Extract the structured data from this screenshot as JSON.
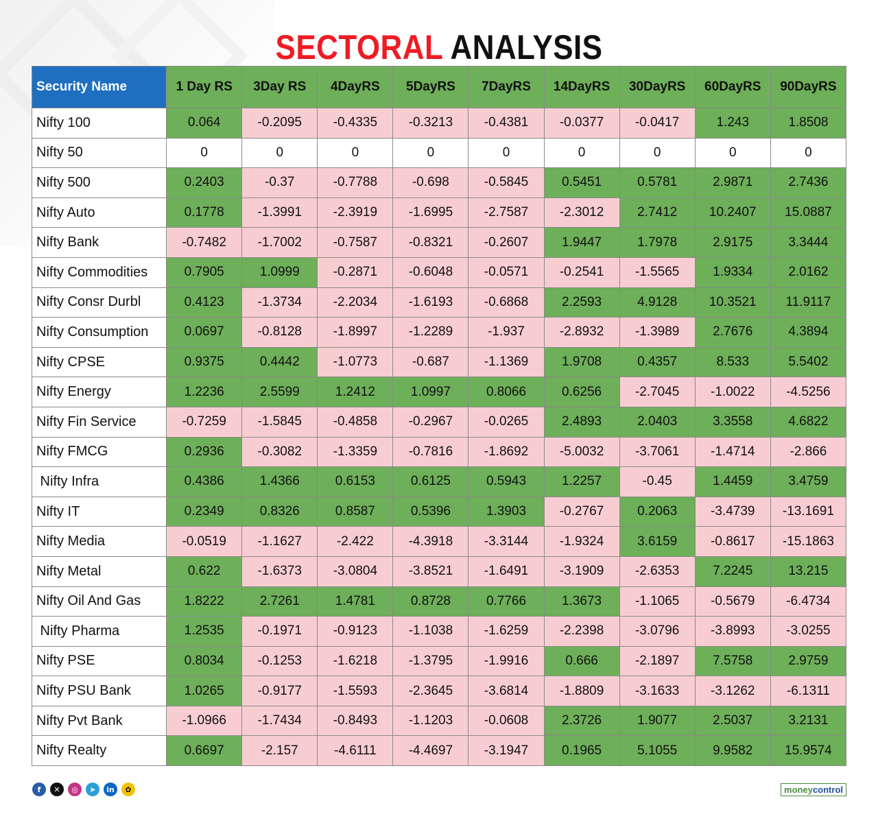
{
  "title": {
    "part1": "SECTORAL",
    "part2": "ANALYSIS"
  },
  "chart_data": {
    "type": "table",
    "title": "SECTORAL ANALYSIS",
    "columns": [
      "Security Name",
      "1 Day RS",
      "3Day RS",
      "4DayRS",
      "5DayRS",
      "7DayRS",
      "14DayRS",
      "30DayRS",
      "60DayRS",
      "90DayRS"
    ],
    "rows": [
      {
        "name": "Nifty 100",
        "values": [
          "0.064",
          "-0.2095",
          "-0.4335",
          "-0.3213",
          "-0.4381",
          "-0.0377",
          "-0.0417",
          "1.243",
          "1.8508"
        ]
      },
      {
        "name": "Nifty 50",
        "values": [
          "0",
          "0",
          "0",
          "0",
          "0",
          "0",
          "0",
          "0",
          "0"
        ]
      },
      {
        "name": "Nifty 500",
        "values": [
          "0.2403",
          "-0.37",
          "-0.7788",
          "-0.698",
          "-0.5845",
          "0.5451",
          "0.5781",
          "2.9871",
          "2.7436"
        ]
      },
      {
        "name": "Nifty Auto",
        "values": [
          "0.1778",
          "-1.3991",
          "-2.3919",
          "-1.6995",
          "-2.7587",
          "-2.3012",
          "2.7412",
          "10.2407",
          "15.0887"
        ]
      },
      {
        "name": "Nifty Bank",
        "values": [
          "-0.7482",
          "-1.7002",
          "-0.7587",
          "-0.8321",
          "-0.2607",
          "1.9447",
          "1.7978",
          "2.9175",
          "3.3444"
        ]
      },
      {
        "name": "Nifty Commodities",
        "values": [
          "0.7905",
          "1.0999",
          "-0.2871",
          "-0.6048",
          "-0.0571",
          "-0.2541",
          "-1.5565",
          "1.9334",
          "2.0162"
        ]
      },
      {
        "name": "Nifty Consr Durbl",
        "values": [
          "0.4123",
          "-1.3734",
          "-2.2034",
          "-1.6193",
          "-0.6868",
          "2.2593",
          "4.9128",
          "10.3521",
          "11.9117"
        ]
      },
      {
        "name": "Nifty Consumption",
        "values": [
          "0.0697",
          "-0.8128",
          "-1.8997",
          "-1.2289",
          "-1.937",
          "-2.8932",
          "-1.3989",
          "2.7676",
          "4.3894"
        ]
      },
      {
        "name": "Nifty CPSE",
        "values": [
          "0.9375",
          "0.4442",
          "-1.0773",
          "-0.687",
          "-1.1369",
          "1.9708",
          "0.4357",
          "8.533",
          "5.5402"
        ]
      },
      {
        "name": "Nifty Energy",
        "values": [
          "1.2236",
          "2.5599",
          "1.2412",
          "1.0997",
          "0.8066",
          "0.6256",
          "-2.7045",
          "-1.0022",
          "-4.5256"
        ]
      },
      {
        "name": "Nifty Fin Service",
        "values": [
          "-0.7259",
          "-1.5845",
          "-0.4858",
          "-0.2967",
          "-0.0265",
          "2.4893",
          "2.0403",
          "3.3558",
          "4.6822"
        ]
      },
      {
        "name": "Nifty FMCG",
        "values": [
          "0.2936",
          "-0.3082",
          "-1.3359",
          "-0.7816",
          "-1.8692",
          "-5.0032",
          "-3.7061",
          "-1.4714",
          "-2.866"
        ]
      },
      {
        "name": " Nifty Infra",
        "values": [
          "0.4386",
          "1.4366",
          "0.6153",
          "0.6125",
          "0.5943",
          "1.2257",
          "-0.45",
          "1.4459",
          "3.4759"
        ]
      },
      {
        "name": "Nifty IT",
        "values": [
          "0.2349",
          "0.8326",
          "0.8587",
          "0.5396",
          "1.3903",
          "-0.2767",
          "0.2063",
          "-3.4739",
          "-13.1691"
        ]
      },
      {
        "name": "Nifty Media",
        "values": [
          "-0.0519",
          "-1.1627",
          "-2.422",
          "-4.3918",
          "-3.3144",
          "-1.9324",
          "3.6159",
          "-0.8617",
          "-15.1863"
        ]
      },
      {
        "name": "Nifty Metal",
        "values": [
          "0.622",
          "-1.6373",
          "-3.0804",
          "-3.8521",
          "-1.6491",
          "-3.1909",
          "-2.6353",
          "7.2245",
          "13.215"
        ]
      },
      {
        "name": "Nifty Oil And Gas",
        "values": [
          "1.8222",
          "2.7261",
          "1.4781",
          "0.8728",
          "0.7766",
          "1.3673",
          "-1.1065",
          "-0.5679",
          "-6.4734"
        ]
      },
      {
        "name": " Nifty Pharma",
        "values": [
          "1.2535",
          "-0.1971",
          "-0.9123",
          "-1.1038",
          "-1.6259",
          "-2.2398",
          "-3.0796",
          "-3.8993",
          "-3.0255"
        ]
      },
      {
        "name": "Nifty PSE",
        "values": [
          "0.8034",
          "-0.1253",
          "-1.6218",
          "-1.3795",
          "-1.9916",
          "0.666",
          "-2.1897",
          "7.5758",
          "2.9759"
        ]
      },
      {
        "name": "Nifty PSU Bank",
        "values": [
          "1.0265",
          "-0.9177",
          "-1.5593",
          "-2.3645",
          "-3.6814",
          "-1.8809",
          "-3.1633",
          "-3.1262",
          "-6.1311"
        ]
      },
      {
        "name": "Nifty Pvt Bank",
        "values": [
          "-1.0966",
          "-1.7434",
          "-0.8493",
          "-1.1203",
          "-0.0608",
          "2.3726",
          "1.9077",
          "2.5037",
          "3.2131"
        ]
      },
      {
        "name": "Nifty Realty",
        "values": [
          "0.6697",
          "-2.157",
          "-4.6111",
          "-4.4697",
          "-3.1947",
          "0.1965",
          "5.1055",
          "9.9582",
          "15.9574"
        ]
      }
    ],
    "colors": {
      "positive": "#6eaf5a",
      "negative": "#f8cdd1",
      "zero": "#ffffff",
      "header": "#6eaf5a",
      "name_header": "#1e6fc0"
    }
  },
  "footer": {
    "icons": [
      "facebook-icon",
      "x-icon",
      "instagram-icon",
      "telegram-icon",
      "linkedin-icon",
      "snapchat-icon"
    ],
    "brand_part1": "money",
    "brand_part2": "control"
  }
}
